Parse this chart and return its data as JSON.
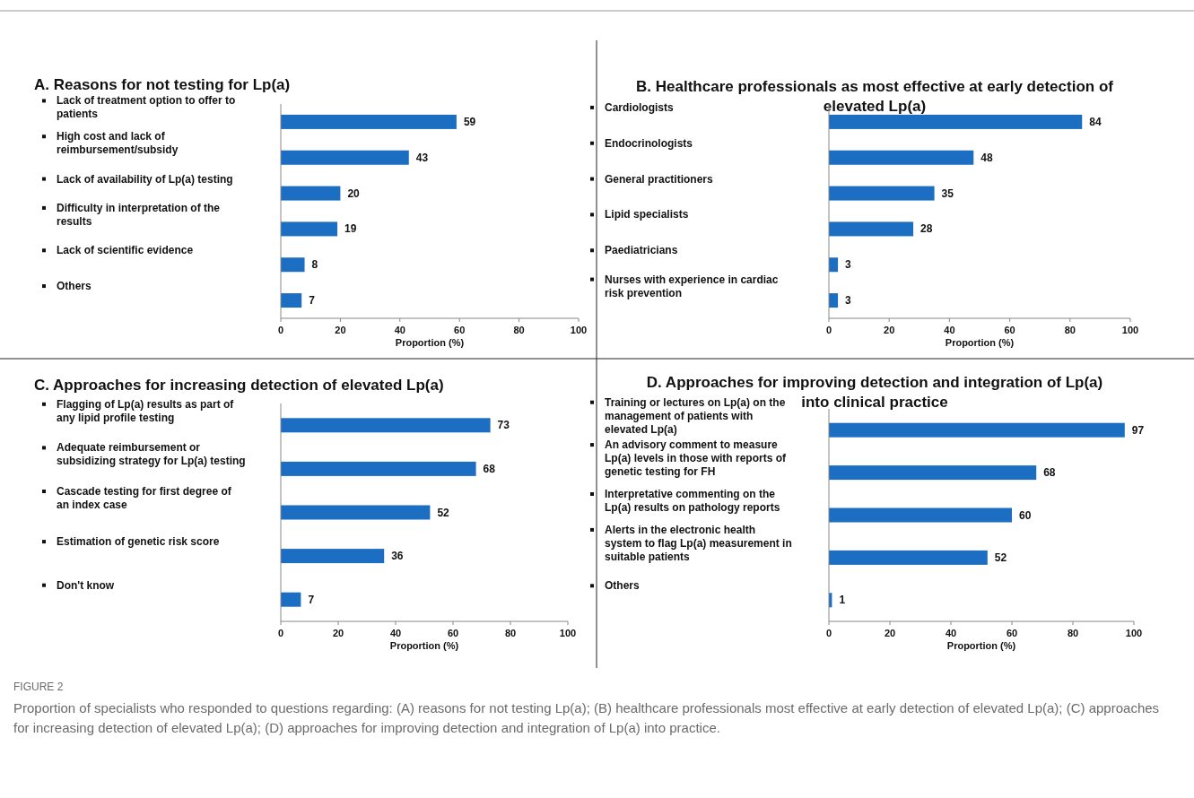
{
  "chart_data": [
    {
      "type": "bar",
      "orientation": "horizontal",
      "title": "A. Reasons for not testing for Lp(a)",
      "xlabel": "Proportion (%)",
      "categories": [
        "Lack of treatment option to offer to patients",
        "High cost and lack of reimbursement/subsidy",
        "Lack of availability of Lp(a) testing",
        "Difficulty in interpretation of the results",
        "Lack of scientific evidence",
        "Others"
      ],
      "values": [
        59,
        43,
        20,
        19,
        8,
        7
      ],
      "color": "#1b6ec2",
      "xlim": [
        0,
        100
      ],
      "xticks": [
        0,
        20,
        40,
        60,
        80,
        100
      ],
      "data_labels": true,
      "grid": false,
      "annotations": [
        "FIGURE 2",
        "Proportion of specialists who responded to questions regarding: (A) reasons for not testing Lp(a); (B) healthcare professionals most effective at early detection of elevated Lp(a); (C) approaches for increasing detection of elevated Lp(a); (D) approaches for improving detection and integration of Lp(a) into practice."
      ]
    },
    {
      "type": "bar",
      "orientation": "horizontal",
      "title": "B. Healthcare professionals as most effective at early detection of elevated Lp(a)",
      "xlabel": "Proportion (%)",
      "categories": [
        "Cardiologists",
        "Endocrinologists",
        "General practitioners",
        "Lipid specialists",
        "Paediatricians",
        "Nurses with experience in cardiac risk prevention"
      ],
      "values": [
        84,
        48,
        35,
        28,
        3,
        3
      ],
      "color": "#1b6ec2",
      "xlim": [
        0,
        100
      ],
      "xticks": [
        0,
        20,
        40,
        60,
        80,
        100
      ],
      "data_labels": true,
      "grid": false
    },
    {
      "type": "bar",
      "orientation": "horizontal",
      "title": "C. Approaches for increasing detection of elevated Lp(a)",
      "xlabel": "Proportion (%)",
      "categories": [
        "Flagging of Lp(a) results as part of any lipid profile testing",
        "Adequate reimbursement or subsidizing strategy for Lp(a) testing",
        "Cascade testing for first degree of an index case",
        "Estimation of genetic risk score",
        "Don't know"
      ],
      "values": [
        73,
        68,
        52,
        36,
        7
      ],
      "color": "#1b6ec2",
      "xlim": [
        0,
        100
      ],
      "xticks": [
        0,
        20,
        40,
        60,
        80,
        100
      ],
      "data_labels": true,
      "grid": false
    },
    {
      "type": "bar",
      "orientation": "horizontal",
      "title": "D. Approaches for improving detection and integration  of Lp(a) into clinical practice",
      "xlabel": "Proportion (%)",
      "categories": [
        "Training or lectures on Lp(a) on the management of patients with elevated Lp(a)",
        "An advisory comment to measure Lp(a) levels in those with reports of genetic testing for FH",
        "Interpretative commenting on the Lp(a) results on pathology reports",
        "Alerts in the electronic health system to flag Lp(a) measurement in suitable patients",
        "Others"
      ],
      "values": [
        97,
        68,
        60,
        52,
        1
      ],
      "color": "#1b6ec2",
      "xlim": [
        0,
        100
      ],
      "xticks": [
        0,
        20,
        40,
        60,
        80,
        100
      ],
      "data_labels": true,
      "grid": false
    }
  ]
}
